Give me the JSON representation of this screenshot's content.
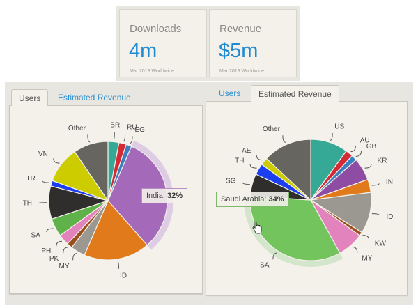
{
  "stats": [
    {
      "label": "Downloads",
      "value": "4m",
      "sub": "Mar 2018 Worldwide"
    },
    {
      "label": "Revenue",
      "value": "$5m",
      "sub": "Mar 2018 Worldwide"
    }
  ],
  "left_panel": {
    "tabs": [
      {
        "label": "Users",
        "active": true
      },
      {
        "label": "Estimated Revenue",
        "active": false
      }
    ],
    "tooltip": {
      "name": "India:",
      "value": "32%"
    }
  },
  "right_panel": {
    "tabs": [
      {
        "label": "Users",
        "active": false
      },
      {
        "label": "Estimated Revenue",
        "active": true
      }
    ],
    "tooltip": {
      "name": "Saudi Arabia:",
      "value": "34%"
    }
  },
  "chart_data": [
    {
      "type": "pie",
      "title": "Users",
      "highlighted": "IN",
      "slices": [
        {
          "label": "BR",
          "value": 3,
          "color": "#35a996"
        },
        {
          "label": "RU",
          "value": 2,
          "color": "#d42a35"
        },
        {
          "label": "EG",
          "value": 1.5,
          "color": "#3b7fc0"
        },
        {
          "label": "IN",
          "value": 32,
          "color": "#a569b9",
          "hidden_label": true
        },
        {
          "label": "ID",
          "value": 18,
          "color": "#e07a1a"
        },
        {
          "label": "MY",
          "value": 4,
          "color": "#9a9890"
        },
        {
          "label": "PK",
          "value": 1.5,
          "color": "#9a4e1e"
        },
        {
          "label": "PH",
          "value": 3,
          "color": "#e283bd"
        },
        {
          "label": "SA",
          "value": 5,
          "color": "#5fb14a"
        },
        {
          "label": "TH",
          "value": 9,
          "color": "#302e2c"
        },
        {
          "label": "TR",
          "value": 1.5,
          "color": "#1b3ff0"
        },
        {
          "label": "VN",
          "value": 10,
          "color": "#cccc00"
        },
        {
          "label": "Other",
          "value": 9.5,
          "color": "#676560"
        }
      ]
    },
    {
      "type": "pie",
      "title": "Estimated Revenue",
      "highlighted": "SA",
      "slices": [
        {
          "label": "US",
          "value": 10,
          "color": "#35a996"
        },
        {
          "label": "AU",
          "value": 2,
          "color": "#d42a35"
        },
        {
          "label": "GB",
          "value": 1.5,
          "color": "#3b7fc0"
        },
        {
          "label": "KR",
          "value": 6,
          "color": "#8e4da3"
        },
        {
          "label": "IN",
          "value": 3.5,
          "color": "#e07a1a"
        },
        {
          "label": "ID",
          "value": 11,
          "color": "#9a9890"
        },
        {
          "label": "KW",
          "value": 1,
          "color": "#9a4e1e"
        },
        {
          "label": "MY",
          "value": 7,
          "color": "#e283bd"
        },
        {
          "label": "SA",
          "value": 34,
          "color": "#74c45e"
        },
        {
          "label": "SG",
          "value": 6,
          "color": "#302e2c"
        },
        {
          "label": "TH",
          "value": 3,
          "color": "#1b3ff0"
        },
        {
          "label": "AE",
          "value": 2,
          "color": "#cccc00"
        },
        {
          "label": "Other",
          "value": 13,
          "color": "#676560"
        }
      ]
    }
  ]
}
